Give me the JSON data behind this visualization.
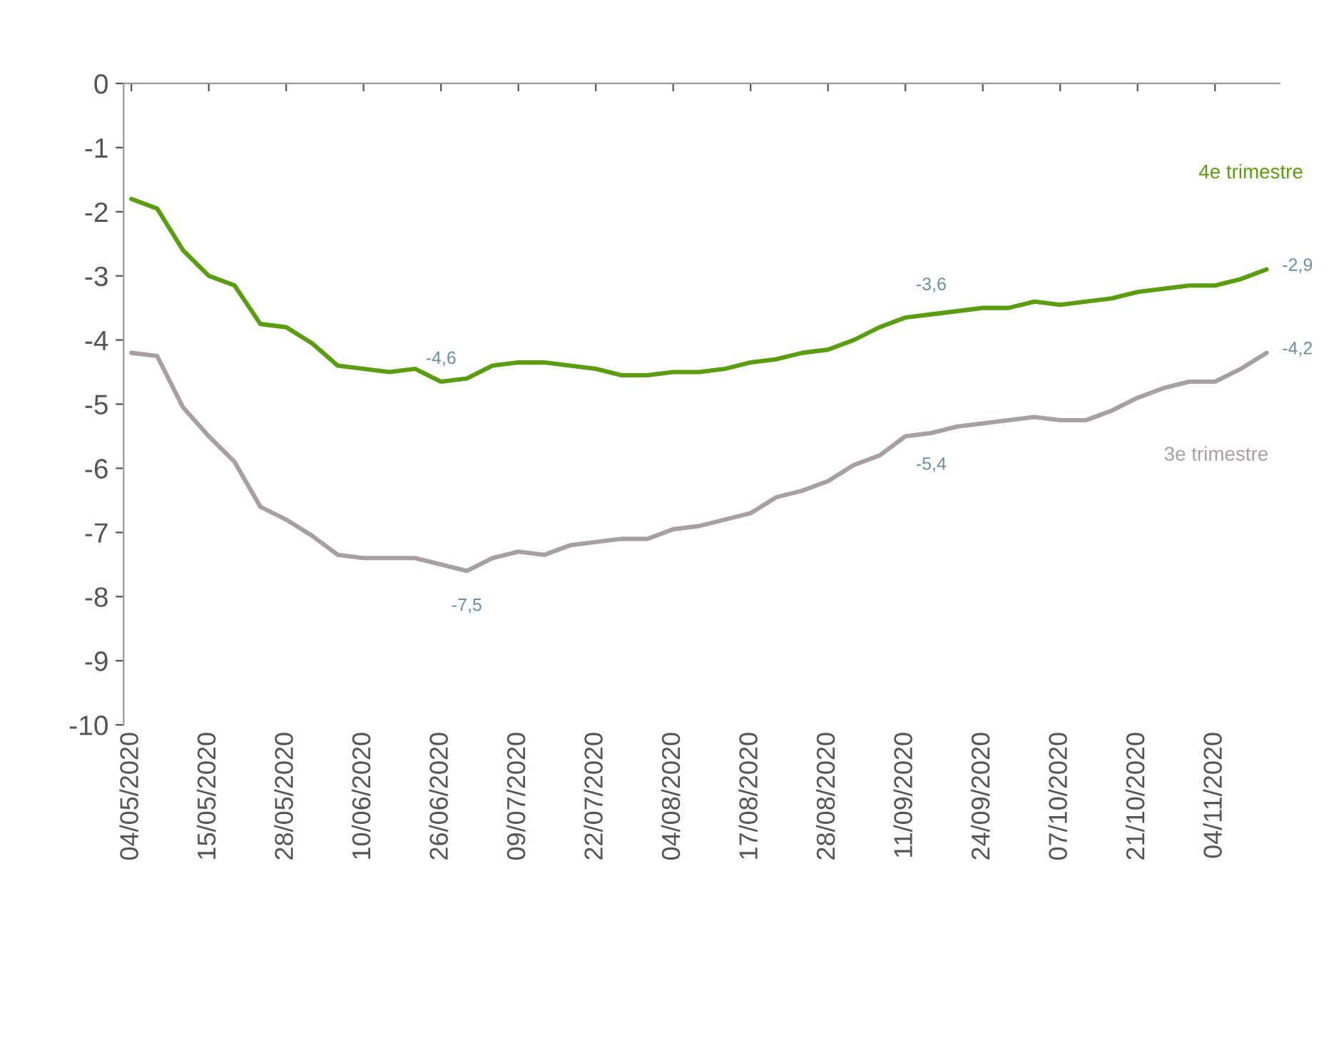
{
  "chart_data": {
    "type": "line",
    "categories": [
      "04/05/2020",
      null,
      null,
      "15/05/2020",
      null,
      null,
      "28/05/2020",
      null,
      null,
      "10/06/2020",
      null,
      null,
      "26/06/2020",
      null,
      null,
      "09/07/2020",
      null,
      null,
      "22/07/2020",
      null,
      null,
      "04/08/2020",
      null,
      null,
      "17/08/2020",
      null,
      null,
      "28/08/2020",
      null,
      null,
      "11/09/2020",
      null,
      null,
      "24/09/2020",
      null,
      null,
      "07/10/2020",
      null,
      null,
      "21/10/2020",
      null,
      null,
      "04/11/2020",
      null,
      null
    ],
    "series": [
      {
        "name": "4e trimestre",
        "color": "#5a9e10",
        "values": [
          -1.8,
          -1.95,
          -2.6,
          -3.0,
          -3.15,
          -3.75,
          -3.8,
          -4.05,
          -4.4,
          -4.45,
          -4.5,
          -4.45,
          -4.65,
          -4.6,
          -4.4,
          -4.35,
          -4.35,
          -4.4,
          -4.45,
          -4.55,
          -4.55,
          -4.5,
          -4.5,
          -4.45,
          -4.35,
          -4.3,
          -4.2,
          -4.15,
          -4.0,
          -3.8,
          -3.65,
          -3.6,
          -3.55,
          -3.5,
          -3.5,
          -3.4,
          -3.45,
          -3.4,
          -3.35,
          -3.25,
          -3.2,
          -3.15,
          -3.15,
          -3.05,
          -2.9
        ]
      },
      {
        "name": "3e trimestre",
        "color": "#a8a0a0",
        "values": [
          -4.2,
          -4.25,
          -5.05,
          -5.5,
          -5.9,
          -6.6,
          -6.8,
          -7.05,
          -7.35,
          -7.4,
          -7.4,
          -7.4,
          -7.5,
          -7.6,
          -7.4,
          -7.3,
          -7.35,
          -7.2,
          -7.15,
          -7.1,
          -7.1,
          -6.95,
          -6.9,
          -6.8,
          -6.7,
          -6.45,
          -6.35,
          -6.2,
          -5.95,
          -5.8,
          -5.5,
          -5.45,
          -5.35,
          -5.3,
          -5.25,
          -5.2,
          -5.25,
          -5.25,
          -5.1,
          -4.9,
          -4.75,
          -4.65,
          -4.65,
          -4.45,
          -4.2
        ]
      }
    ],
    "annotations": [
      "-4,6",
      "-3,6",
      "-2,9",
      "-4,2",
      "-5,4",
      "-7,5"
    ],
    "ylim": [
      -10,
      0
    ],
    "yticks": [
      {
        "value": 0,
        "label": "0"
      },
      {
        "value": -1,
        "label": "-1"
      },
      {
        "value": -2,
        "label": "-2"
      },
      {
        "value": -3,
        "label": "-3"
      },
      {
        "value": -4,
        "label": "-4"
      },
      {
        "value": -5,
        "label": "-5"
      },
      {
        "value": -6,
        "label": "-6"
      },
      {
        "value": -7,
        "label": "-7"
      },
      {
        "value": -8,
        "label": "-8"
      },
      {
        "value": -9,
        "label": "-9"
      },
      {
        "value": -10,
        "label": "-10"
      }
    ],
    "grid": false,
    "legend": false
  }
}
